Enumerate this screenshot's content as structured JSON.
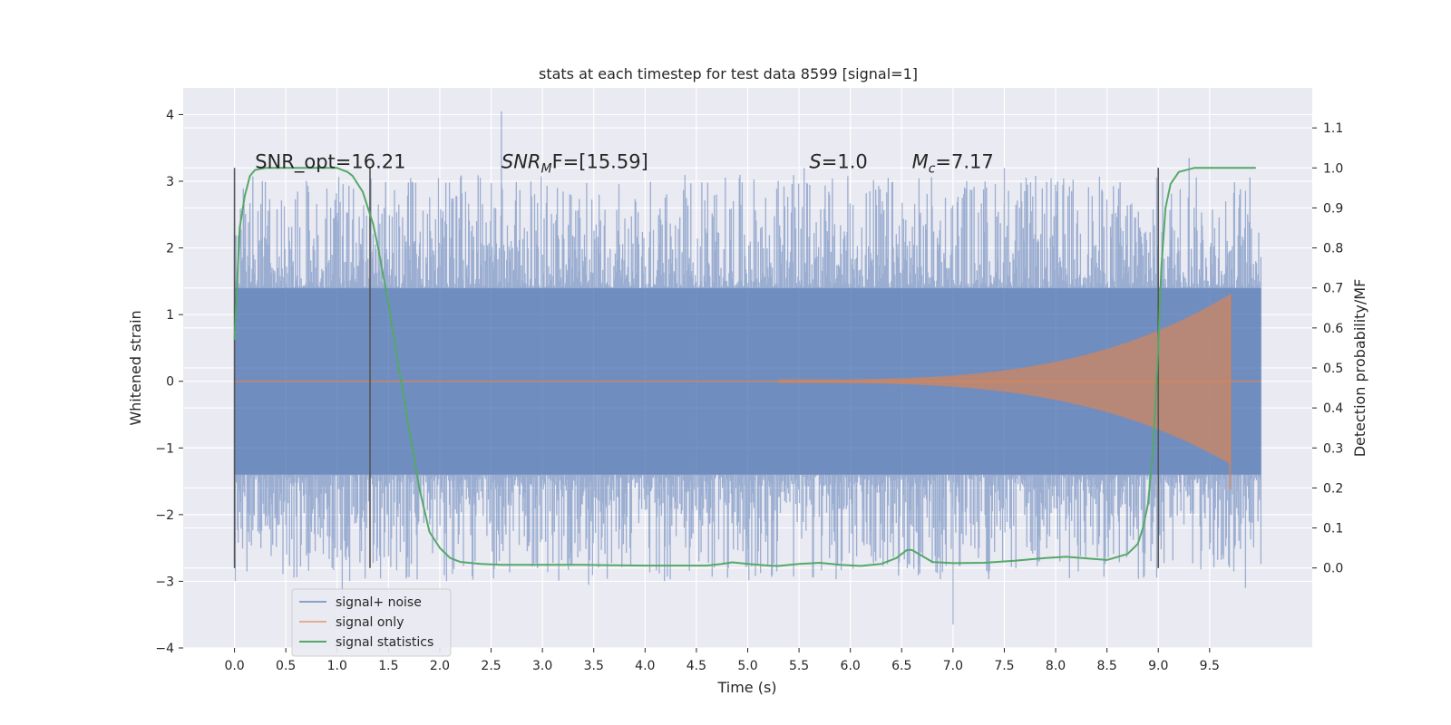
{
  "chart_data": {
    "type": "line",
    "title": "stats at each timestep for test data 8599 [signal=1]",
    "xlabel": "Time (s)",
    "ylabel": "Whitened strain",
    "ylabel_right": "Detection probability/MF",
    "xlim": [
      -0.5,
      10.5
    ],
    "ylim": [
      -4,
      4.4
    ],
    "ylim_right": [
      -0.2,
      1.2
    ],
    "xticks": [
      0.0,
      0.5,
      1.0,
      1.5,
      2.0,
      2.5,
      3.0,
      3.5,
      4.0,
      4.5,
      5.0,
      5.5,
      6.0,
      6.5,
      7.0,
      7.5,
      8.0,
      8.5,
      9.0,
      9.5
    ],
    "xtick_labels": [
      "0.0",
      "0.5",
      "1.0",
      "1.5",
      "2.0",
      "2.5",
      "3.0",
      "3.5",
      "4.0",
      "4.5",
      "5.0",
      "5.5",
      "6.0",
      "6.5",
      "7.0",
      "7.5",
      "8.0",
      "8.5",
      "9.0",
      "9.5"
    ],
    "yticks": [
      -4,
      -3,
      -2,
      -1,
      0,
      1,
      2,
      3,
      4
    ],
    "ytick_labels": [
      "−4",
      "−3",
      "−2",
      "−1",
      "0",
      "1",
      "2",
      "3",
      "4"
    ],
    "yticks_right": [
      0.0,
      0.1,
      0.2,
      0.3,
      0.4,
      0.5,
      0.6,
      0.7,
      0.8,
      0.9,
      1.0,
      1.1
    ],
    "ytick_labels_right": [
      "0.0",
      "0.1",
      "0.2",
      "0.3",
      "0.4",
      "0.5",
      "0.6",
      "0.7",
      "0.8",
      "0.9",
      "1.0",
      "1.1"
    ],
    "grid": true,
    "legend_position": "bottom-left",
    "series": [
      {
        "name": "signal+ noise",
        "color": "#4c72b0",
        "axis": "left",
        "x_range": [
          0,
          10
        ],
        "typical_amplitude": 1.4,
        "peak_max": 4.05,
        "peak_min": -3.65
      },
      {
        "name": "signal only",
        "color": "#dd8452",
        "axis": "left",
        "x_range": [
          0,
          10
        ],
        "chirp_start": 5.3,
        "merger_time": 9.7,
        "max_amplitude": 1.3
      },
      {
        "name": "signal statistics",
        "color": "#55a868",
        "axis": "right",
        "x": [
          0.0,
          0.05,
          0.1,
          0.15,
          0.2,
          0.3,
          0.5,
          0.7,
          0.9,
          1.0,
          1.1,
          1.15,
          1.2,
          1.25,
          1.3,
          1.35,
          1.4,
          1.5,
          1.6,
          1.7,
          1.8,
          1.9,
          2.0,
          2.1,
          2.2,
          2.4,
          2.6,
          3.0,
          3.4,
          3.6,
          4.0,
          4.3,
          4.6,
          4.75,
          4.85,
          5.0,
          5.2,
          5.3,
          5.5,
          5.7,
          5.9,
          6.1,
          6.3,
          6.45,
          6.55,
          6.6,
          6.7,
          6.8,
          7.0,
          7.3,
          7.6,
          7.9,
          8.1,
          8.3,
          8.5,
          8.7,
          8.8,
          8.85,
          8.9,
          8.95,
          9.0,
          9.03,
          9.07,
          9.12,
          9.2,
          9.35,
          9.5,
          9.7,
          9.8,
          9.95
        ],
        "y": [
          0.57,
          0.85,
          0.93,
          0.98,
          0.995,
          1.0,
          1.0,
          1.0,
          1.0,
          1.0,
          0.99,
          0.98,
          0.96,
          0.94,
          0.9,
          0.86,
          0.8,
          0.66,
          0.5,
          0.35,
          0.2,
          0.09,
          0.05,
          0.025,
          0.015,
          0.01,
          0.008,
          0.008,
          0.008,
          0.007,
          0.006,
          0.006,
          0.006,
          0.01,
          0.014,
          0.01,
          0.006,
          0.005,
          0.01,
          0.013,
          0.008,
          0.005,
          0.01,
          0.025,
          0.045,
          0.045,
          0.03,
          0.015,
          0.012,
          0.013,
          0.018,
          0.025,
          0.028,
          0.024,
          0.02,
          0.035,
          0.06,
          0.1,
          0.16,
          0.3,
          0.55,
          0.75,
          0.9,
          0.96,
          0.99,
          1.0,
          1.0,
          1.0,
          1.0,
          1.0
        ]
      }
    ],
    "vertical_markers": [
      0.0,
      1.32,
      9.0
    ],
    "marker_range_right": [
      0.0,
      1.0
    ],
    "annotations": [
      {
        "text": "SNR_opt=16.21",
        "x": 0.2,
        "y": 3.2
      },
      {
        "main": "SNR",
        "sub": "M",
        "rest": "F=[15.59]",
        "x": 2.6,
        "y": 3.2
      },
      {
        "main": "S",
        "rest": "=1.0",
        "x": 5.6,
        "y": 3.2
      },
      {
        "main": "M",
        "sub": "c",
        "rest": "=7.17",
        "x": 6.6,
        "y": 3.2
      }
    ]
  }
}
